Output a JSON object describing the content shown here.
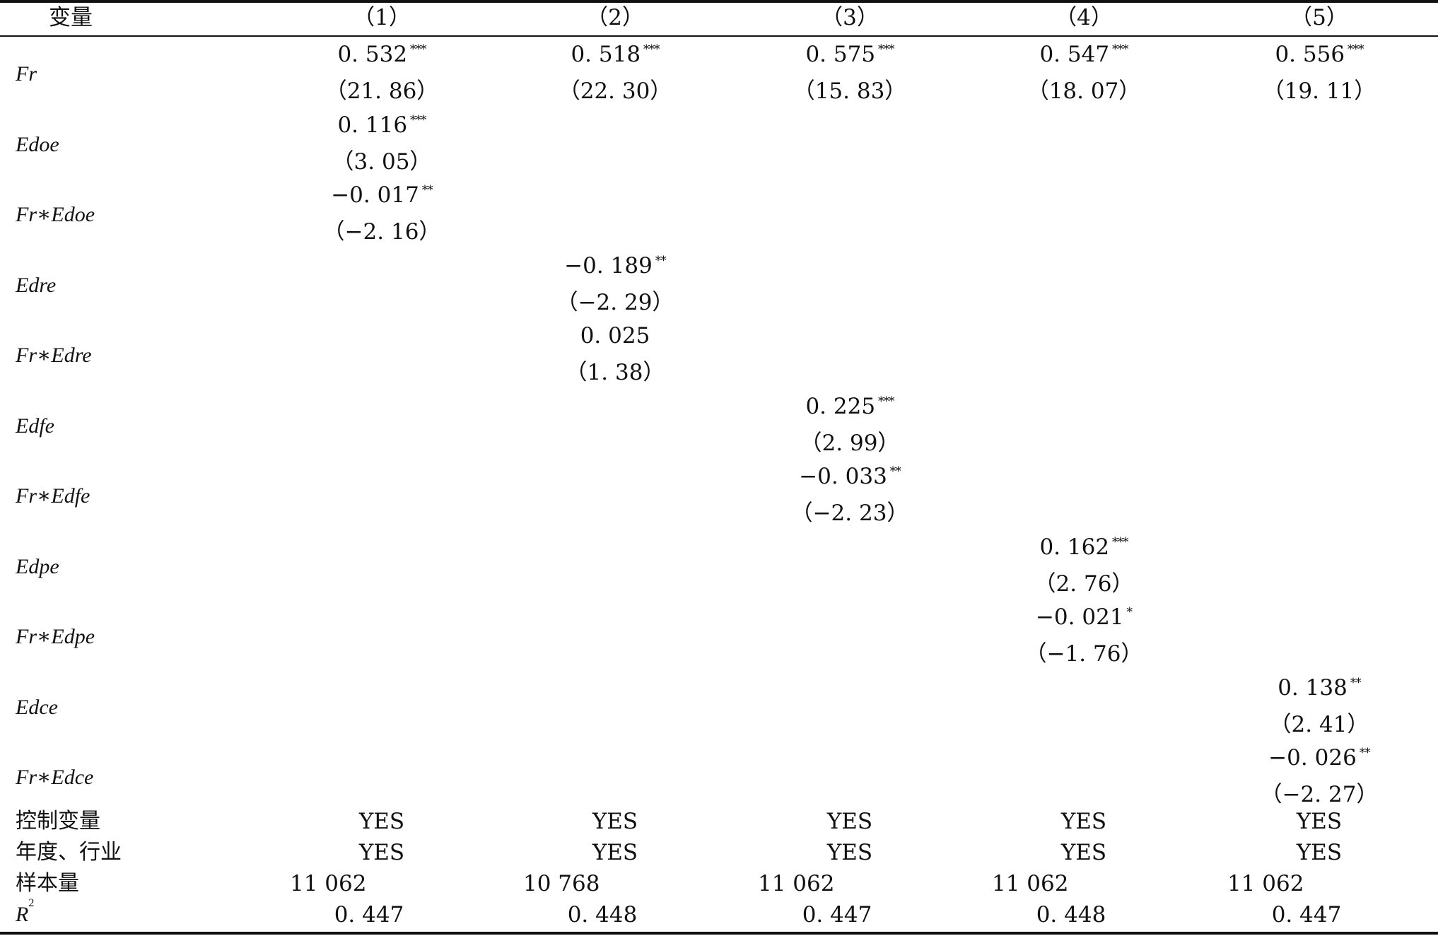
{
  "header": [
    "变量",
    "（1）",
    "（2）",
    "（3）",
    "（4）",
    "（5）"
  ],
  "rows": [
    {
      "var": "Fr",
      "cells": [
        {
          "col": 0,
          "coef": "0. 532",
          "star": "***",
          "t": "（21. 86）"
        },
        {
          "col": 1,
          "coef": "0. 518",
          "star": "***",
          "t": "（22. 30）"
        },
        {
          "col": 2,
          "coef": "0. 575",
          "star": "***",
          "t": "（15. 83）"
        },
        {
          "col": 3,
          "coef": "0. 547",
          "star": "***",
          "t": "（18. 07）"
        },
        {
          "col": 4,
          "coef": "0. 556",
          "star": "***",
          "t": "（19. 11）"
        }
      ]
    },
    {
      "var": "Edoe",
      "cells": [
        {
          "col": 0,
          "coef": "0. 116",
          "star": "***",
          "t": "（3. 05）"
        }
      ]
    },
    {
      "var": "Fr∗Edoe",
      "cells": [
        {
          "col": 0,
          "coef": "−0. 017",
          "star": "**",
          "t": "（−2. 16）"
        }
      ]
    },
    {
      "var": "Edre",
      "cells": [
        {
          "col": 1,
          "coef": "−0. 189",
          "star": "**",
          "t": "（−2. 29）"
        }
      ]
    },
    {
      "var": "Fr∗Edre",
      "cells": [
        {
          "col": 1,
          "coef": "0. 025",
          "star": "",
          "t": "（1. 38）"
        }
      ]
    },
    {
      "var": "Edfe",
      "cells": [
        {
          "col": 2,
          "coef": "0. 225",
          "star": "***",
          "t": "（2. 99）"
        }
      ]
    },
    {
      "var": "Fr∗Edfe",
      "cells": [
        {
          "col": 2,
          "coef": "−0. 033",
          "star": "**",
          "t": "（−2. 23）"
        }
      ]
    },
    {
      "var": "Edpe",
      "cells": [
        {
          "col": 3,
          "coef": "0. 162",
          "star": "***",
          "t": "（2. 76）"
        }
      ]
    },
    {
      "var": "Fr∗Edpe",
      "cells": [
        {
          "col": 3,
          "coef": "−0. 021",
          "star": "*",
          "t": "（−1. 76）"
        }
      ]
    },
    {
      "var": "Edce",
      "cells": [
        {
          "col": 4,
          "coef": "0. 138",
          "star": "**",
          "t": "（2. 41）"
        }
      ]
    },
    {
      "var": "Fr∗Edce",
      "cells": [
        {
          "col": 4,
          "coef": "−0. 026",
          "star": "**",
          "t": "（−2. 27）"
        }
      ]
    }
  ],
  "footer": [
    {
      "label": "控制变量",
      "values": [
        "YES",
        "YES",
        "YES",
        "YES",
        "YES"
      ]
    },
    {
      "label": "年度、行业",
      "values": [
        "YES",
        "YES",
        "YES",
        "YES",
        "YES"
      ]
    },
    {
      "label": "样本量",
      "values": [
        "11 062",
        "10 768",
        "11 062",
        "11 062",
        "11 062"
      ]
    },
    {
      "label": "R",
      "label_sup": "2",
      "values": [
        "0. 447",
        "0. 448",
        "0. 447",
        "0. 448",
        "0. 447"
      ]
    }
  ]
}
